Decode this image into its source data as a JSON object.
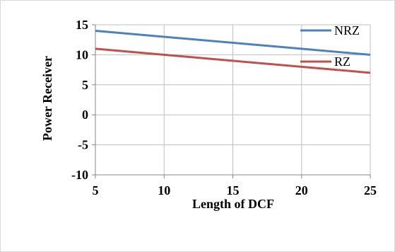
{
  "chart_data": {
    "type": "line",
    "title": "",
    "xlabel": "Length of DCF",
    "ylabel": "Power Receiver",
    "x_ticks": [
      "5",
      "10",
      "15",
      "20",
      "25"
    ],
    "y_ticks": [
      "15",
      "10",
      "5",
      "0",
      "-5",
      "-10"
    ],
    "xlim": [
      5,
      25
    ],
    "ylim": [
      -10,
      15
    ],
    "grid": true,
    "legend_position": "top-right",
    "series": [
      {
        "name": "NRZ",
        "color": "#4f81bd",
        "x": [
          5,
          25
        ],
        "y": [
          14,
          10
        ]
      },
      {
        "name": "RZ",
        "color": "#c0504d",
        "x": [
          5,
          25
        ],
        "y": [
          11,
          7
        ]
      }
    ]
  }
}
